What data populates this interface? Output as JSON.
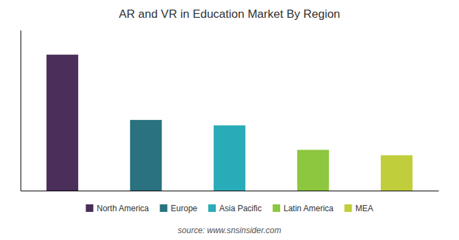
{
  "chart_data": {
    "type": "bar",
    "title": "AR and VR in Education Market By Region",
    "categories": [
      "North America",
      "Europe",
      "Asia Pacific",
      "Latin America",
      "MEA"
    ],
    "values": [
      100,
      52,
      48,
      30,
      26
    ],
    "colors": [
      "#4B2E5A",
      "#2A7280",
      "#2AACB8",
      "#8DC63F",
      "#BFCE3A"
    ],
    "ylim": [
      0,
      118
    ],
    "grid": false,
    "legend": "bottom",
    "tick_labels": false,
    "annotations": [
      "source: www.snsinsider.com"
    ]
  }
}
